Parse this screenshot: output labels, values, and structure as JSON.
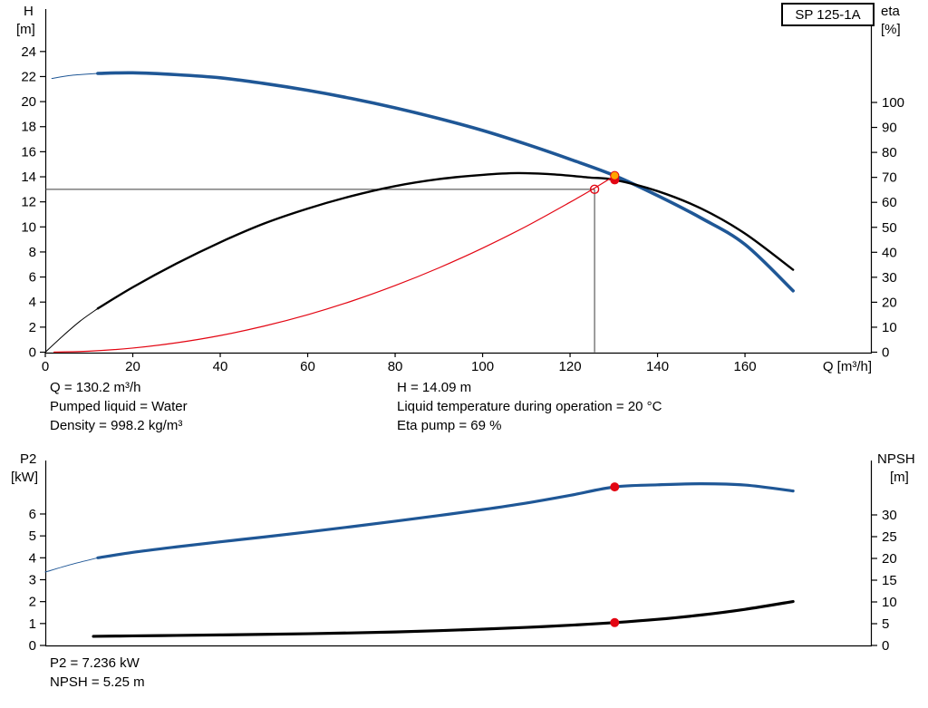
{
  "colors": {
    "blue": "#1f5796",
    "black": "#000000",
    "red": "#e30613",
    "orange": "#ffa600",
    "ref": "#3c3c3c"
  },
  "info_top": {
    "q": "Q = 130.2 m³/h",
    "liquid": "Pumped liquid = Water",
    "density": "Density = 998.2 kg/m³",
    "h": "H = 14.09 m",
    "temp": "Liquid temperature during operation = 20 °C",
    "eta": "Eta pump = 69 %"
  },
  "info_bottom": {
    "p2": "P2 = 7.236 kW",
    "npsh": "NPSH = 5.25 m"
  },
  "chart_data": [
    {
      "type": "line",
      "name": "qh-eta-curves",
      "title_box": "SP 125-1A",
      "x_axis": {
        "title": "Q [m³/h]",
        "min": 0,
        "max": 189,
        "ticks": [
          0,
          20,
          40,
          60,
          80,
          100,
          120,
          140,
          160
        ]
      },
      "y_left": {
        "title_lines": [
          "H",
          "[m]"
        ],
        "min": 0,
        "max": 24,
        "ticks": [
          0,
          2,
          4,
          6,
          8,
          10,
          12,
          14,
          16,
          18,
          20,
          22,
          24
        ]
      },
      "y_right": {
        "title_lines": [
          "eta",
          "[%]"
        ],
        "min": 0,
        "max": 100,
        "ticks": [
          0,
          10,
          20,
          30,
          40,
          50,
          60,
          70,
          80,
          90,
          100
        ]
      },
      "series": [
        {
          "name": "head-curve-lead",
          "axis": "left",
          "color": "blue",
          "width": 1,
          "points": [
            [
              1.5,
              21.85
            ],
            [
              6,
              22.1
            ],
            [
              12,
              22.25
            ]
          ]
        },
        {
          "name": "head-curve",
          "axis": "left",
          "color": "blue",
          "width": 3.6,
          "points": [
            [
              12,
              22.25
            ],
            [
              20,
              22.3
            ],
            [
              30,
              22.15
            ],
            [
              40,
              21.9
            ],
            [
              50,
              21.45
            ],
            [
              60,
              20.9
            ],
            [
              70,
              20.25
            ],
            [
              80,
              19.5
            ],
            [
              90,
              18.65
            ],
            [
              100,
              17.7
            ],
            [
              110,
              16.6
            ],
            [
              120,
              15.4
            ],
            [
              130.2,
              14.09
            ],
            [
              140,
              12.5
            ],
            [
              150,
              10.7
            ],
            [
              160,
              8.6
            ],
            [
              171,
              4.9
            ]
          ]
        },
        {
          "name": "eta-curve-lead",
          "axis": "right",
          "color": "black",
          "width": 1,
          "points": [
            [
              0,
              0
            ],
            [
              4,
              6.5
            ],
            [
              8,
              12.5
            ],
            [
              12,
              17.5
            ]
          ]
        },
        {
          "name": "eta-curve",
          "axis": "right",
          "color": "black",
          "width": 2.4,
          "points": [
            [
              12,
              17.5
            ],
            [
              20,
              26
            ],
            [
              30,
              35.5
            ],
            [
              40,
              44
            ],
            [
              50,
              51.5
            ],
            [
              60,
              57.5
            ],
            [
              70,
              62.5
            ],
            [
              80,
              66.5
            ],
            [
              90,
              69.3
            ],
            [
              100,
              71
            ],
            [
              108,
              71.7
            ],
            [
              116,
              71.2
            ],
            [
              124,
              70
            ],
            [
              130.2,
              69
            ],
            [
              140,
              64.5
            ],
            [
              150,
              57.5
            ],
            [
              160,
              47.5
            ],
            [
              171,
              33
            ]
          ]
        },
        {
          "name": "system-curve",
          "axis": "left",
          "color": "red",
          "width": 1.2,
          "points": [
            [
              2,
              0.01
            ],
            [
              10,
              0.08
            ],
            [
              20,
              0.33
            ],
            [
              30,
              0.75
            ],
            [
              40,
              1.33
            ],
            [
              50,
              2.08
            ],
            [
              60,
              2.99
            ],
            [
              70,
              4.07
            ],
            [
              80,
              5.32
            ],
            [
              90,
              6.73
            ],
            [
              100,
              8.31
            ],
            [
              110,
              10.05
            ],
            [
              120,
              11.97
            ],
            [
              125.6,
              13.1
            ],
            [
              130.2,
              14.09
            ]
          ]
        }
      ],
      "ref_lines": [
        {
          "type": "h",
          "axis": "left",
          "v": 13,
          "q0": 0,
          "q1": 125.6
        },
        {
          "type": "v",
          "axis": "left",
          "q": 125.6,
          "v0": 0,
          "v1": 13
        }
      ],
      "open_markers": [
        {
          "q": 125.6,
          "v": 13,
          "axis": "left"
        }
      ],
      "markers": [
        {
          "q": 130.2,
          "v": 69,
          "axis": "right",
          "style": "red"
        },
        {
          "q": 130.2,
          "v": 14.09,
          "axis": "left",
          "style": "orange"
        }
      ]
    },
    {
      "type": "line",
      "name": "p2-npsh-curves",
      "x_axis": {
        "title": "",
        "min": 0,
        "max": 189,
        "ticks": []
      },
      "y_left": {
        "title_lines": [
          "P2",
          "[kW]"
        ],
        "min": 0,
        "max": 8,
        "ticks": [
          0,
          1,
          2,
          3,
          4,
          5,
          6
        ]
      },
      "y_right": {
        "title_lines": [
          "NPSH",
          "[m]"
        ],
        "min": 0,
        "max": 40,
        "ticks": [
          0,
          5,
          10,
          15,
          20,
          25,
          30
        ]
      },
      "series": [
        {
          "name": "p2-curve-lead",
          "axis": "left",
          "color": "blue",
          "width": 1,
          "points": [
            [
              0,
              3.35
            ],
            [
              6,
              3.7
            ],
            [
              12,
              4.0
            ]
          ]
        },
        {
          "name": "p2-curve",
          "axis": "left",
          "color": "blue",
          "width": 3.2,
          "points": [
            [
              12,
              4.0
            ],
            [
              20,
              4.25
            ],
            [
              30,
              4.5
            ],
            [
              40,
              4.73
            ],
            [
              50,
              4.95
            ],
            [
              60,
              5.18
            ],
            [
              70,
              5.42
            ],
            [
              80,
              5.67
            ],
            [
              90,
              5.93
            ],
            [
              100,
              6.2
            ],
            [
              110,
              6.5
            ],
            [
              120,
              6.85
            ],
            [
              130.2,
              7.236
            ],
            [
              140,
              7.33
            ],
            [
              150,
              7.38
            ],
            [
              160,
              7.32
            ],
            [
              171,
              7.05
            ]
          ]
        },
        {
          "name": "npsh-curve",
          "axis": "right",
          "color": "black",
          "width": 3.2,
          "points": [
            [
              11,
              2.1
            ],
            [
              20,
              2.2
            ],
            [
              30,
              2.3
            ],
            [
              40,
              2.42
            ],
            [
              50,
              2.55
            ],
            [
              60,
              2.7
            ],
            [
              70,
              2.88
            ],
            [
              80,
              3.1
            ],
            [
              90,
              3.4
            ],
            [
              100,
              3.75
            ],
            [
              110,
              4.15
            ],
            [
              120,
              4.65
            ],
            [
              130.2,
              5.25
            ],
            [
              140,
              6.0
            ],
            [
              150,
              7.0
            ],
            [
              160,
              8.3
            ],
            [
              171,
              10.1
            ]
          ]
        }
      ],
      "ref_lines": [],
      "open_markers": [],
      "markers": [
        {
          "q": 130.2,
          "v": 7.236,
          "axis": "left",
          "style": "red"
        },
        {
          "q": 130.2,
          "v": 5.25,
          "axis": "right",
          "style": "red"
        }
      ]
    }
  ]
}
